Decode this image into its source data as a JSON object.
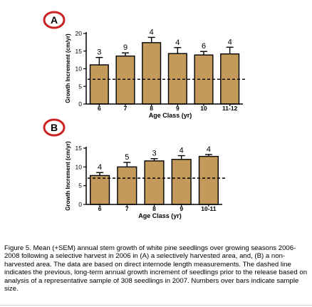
{
  "chart_data": [
    {
      "type": "bar",
      "panel_label": "A",
      "categories": [
        "6",
        "7",
        "8",
        "9",
        "10",
        "11-12"
      ],
      "values": [
        11.1,
        13.6,
        17.4,
        14.3,
        13.9,
        14.2
      ],
      "errors": [
        2.1,
        0.9,
        1.5,
        1.7,
        1.0,
        1.9
      ],
      "sample_sizes": [
        "3",
        "9",
        "4",
        "4",
        "6",
        "4"
      ],
      "reference_line": 7,
      "xlabel": "Age Class (yr)",
      "ylabel": "Growth Increment (cm/yr)",
      "ylim": [
        0,
        20
      ],
      "yticks": [
        0,
        5,
        10,
        15,
        20
      ],
      "bar_color": "#c49a5a",
      "grid": false
    },
    {
      "type": "bar",
      "panel_label": "B",
      "categories": [
        "6",
        "7",
        "8",
        "9",
        "10-11"
      ],
      "values": [
        7.7,
        10.0,
        11.6,
        12.0,
        12.8
      ],
      "errors": [
        0.8,
        1.2,
        0.6,
        1.0,
        0.5
      ],
      "sample_sizes": [
        "4",
        "5",
        "3",
        "4",
        "4"
      ],
      "reference_line": 7,
      "xlabel": "Age Class (yr)",
      "ylabel": "Growth Increment (cm/yr)",
      "ylim": [
        0,
        15
      ],
      "yticks": [
        0,
        5,
        10,
        15
      ],
      "bar_color": "#c49a5a",
      "grid": false
    }
  ],
  "colors": {
    "panel_circle": "#cc2222",
    "bar": "#c49a5a"
  },
  "caption": "Figure 5. Mean (+SEM) annual stem growth of white pine seedlings over growing seasons 2006-2008 following a selective harvest in 2006 in (A) a selectively harvested area, and, (B) a non-harvested area. The data are based on direct internode length measurements. The dashed line indicates the previous, long-term annual growth increment of seedlings prior to the release based on analysis of a representative sample of 308 seedlings in 2007. Numbers over bars indicate sample size."
}
